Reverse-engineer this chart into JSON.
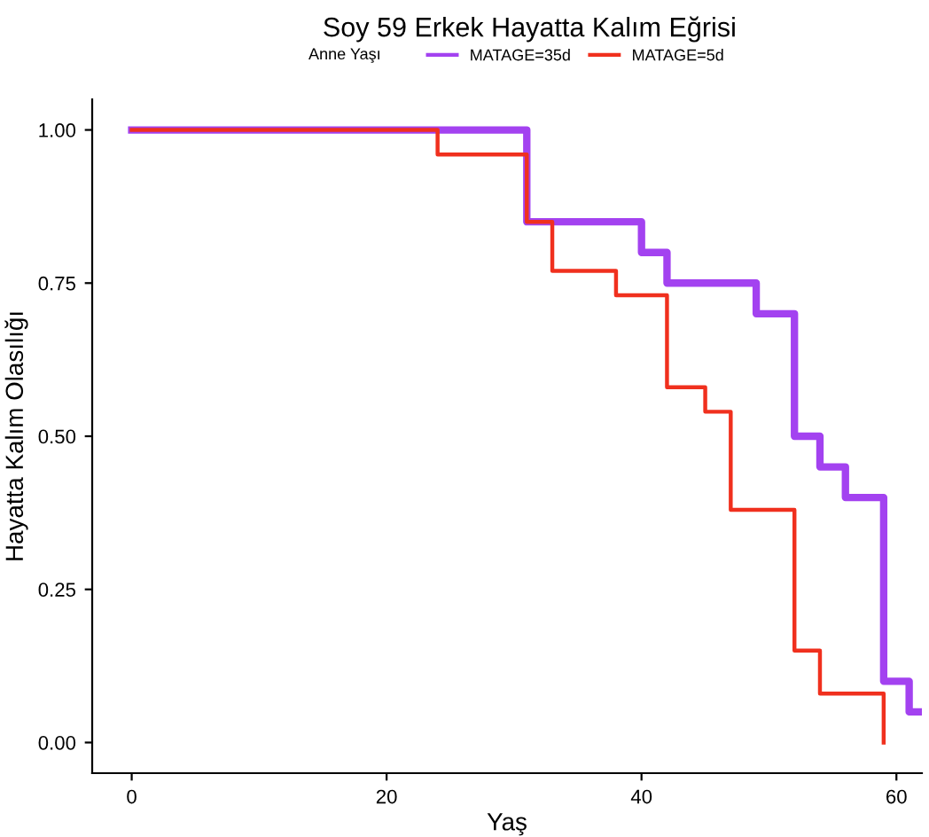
{
  "chart_data": {
    "type": "step",
    "title": "Soy 59 Erkek Hayatta Kalım Eğrisi",
    "xlabel": "Yaş",
    "ylabel": "Hayatta Kalım Olasılığı",
    "legend_title": "Anne Yaşı",
    "legend": "top",
    "series": [
      {
        "name": "MATAGE=35d",
        "color": "#a342f0",
        "x": [
          0,
          31,
          40,
          42,
          49,
          52,
          54,
          56,
          59,
          61,
          62
        ],
        "values": [
          1,
          0.85,
          0.8,
          0.75,
          0.7,
          0.5,
          0.45,
          0.4,
          0.1,
          0.05,
          0.05
        ]
      },
      {
        "name": "MATAGE=5d",
        "color": "#f0301e",
        "x": [
          0,
          24,
          31,
          33,
          38,
          42,
          45,
          47,
          52,
          54,
          59
        ],
        "values": [
          1,
          0.96,
          0.85,
          0.77,
          0.73,
          0.58,
          0.54,
          0.38,
          0.15,
          0.08,
          0
        ]
      }
    ],
    "xlim": [
      -3.1,
      62
    ],
    "xticks": [
      0,
      20,
      40,
      60
    ],
    "ylim": [
      -0.05,
      1.05
    ],
    "yticks": [
      {
        "value": 0,
        "label": "0.00"
      },
      {
        "value": 0.25,
        "label": "0.25"
      },
      {
        "value": 0.5,
        "label": "0.50"
      },
      {
        "value": 0.75,
        "label": "0.75"
      },
      {
        "value": 1,
        "label": "1.00"
      }
    ],
    "grid": false
  }
}
